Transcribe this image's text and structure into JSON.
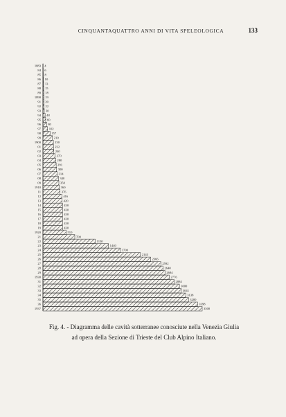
{
  "header": {
    "title": "CINQUANTAQUATTRO ANNI DI VITA SPELEOLOGICA",
    "page_number": "133"
  },
  "chart_data": {
    "type": "bar",
    "orientation": "horizontal",
    "color": "#2a2a2a",
    "categories": [
      "1883",
      "84",
      "85",
      "86",
      "87",
      "88",
      "89",
      "1890",
      "91",
      "92",
      "93",
      "94",
      "95",
      "96",
      "97",
      "98",
      "99",
      "1900",
      "01",
      "02",
      "03",
      "04",
      "05",
      "06",
      "07",
      "08",
      "09",
      "1910",
      "11",
      "12",
      "13",
      "14",
      "15",
      "16",
      "17",
      "18",
      "19",
      "1920",
      "21",
      "22",
      "23",
      "24",
      "25",
      "26",
      "27",
      "28",
      "29",
      "1930",
      "31",
      "32",
      "33",
      "34",
      "35",
      "36",
      "1937"
    ],
    "values": [
      4,
      6,
      8,
      10,
      13,
      15,
      18,
      19,
      20,
      22,
      30,
      48,
      60,
      80,
      102,
      157,
      210,
      230,
      232,
      240,
      270,
      280,
      291,
      300,
      314,
      340,
      350,
      360,
      376,
      416,
      420,
      430,
      430,
      430,
      430,
      430,
      430,
      510,
      700,
      1150,
      1440,
      1700,
      2143,
      2366,
      2592,
      2640,
      2684,
      2776,
      2884,
      3000,
      3041,
      3138,
      3200,
      3398,
      3500
    ]
  },
  "caption": {
    "lines": [
      "Fig. 4. - Diagramma delle cavità sotterranee conosciute nella Venezia Giulia",
      "ad opera della Sezione di Trieste del Club Alpino Italiano."
    ]
  }
}
